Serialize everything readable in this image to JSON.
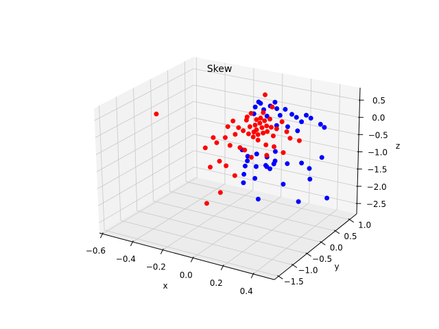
{
  "chart_data": {
    "type": "scatter",
    "projection": "3d",
    "title": "Skew",
    "xlabel": "x",
    "ylabel": "y",
    "zlabel": "z",
    "xlim": [
      -0.62,
      0.54
    ],
    "ylim": [
      -1.65,
      1.25
    ],
    "zlim": [
      -2.8,
      0.86
    ],
    "grid": true,
    "xticks": [
      -0.6,
      -0.4,
      -0.2,
      0.0,
      0.2,
      0.4
    ],
    "xtick_labels": [
      "−0.6",
      "−0.4",
      "−0.2",
      "0.0",
      "0.2",
      "0.4"
    ],
    "yticks": [
      -1.5,
      -1.0,
      -0.5,
      0.0,
      0.5,
      1.0
    ],
    "ytick_labels": [
      "−1.5",
      "−1.0",
      "−0.5",
      "0.0",
      "0.5",
      "1.0"
    ],
    "zticks": [
      -2.5,
      -2.0,
      -1.5,
      -1.0,
      -0.5,
      0.0,
      0.5
    ],
    "ztick_labels": [
      "−2.5",
      "−2.0",
      "−1.5",
      "−1.0",
      "−0.5",
      "0.0",
      "0.5"
    ],
    "series": [
      {
        "color": "#0000ff",
        "points": [
          [
            -0.095,
            1,
            0.04
          ],
          [
            -0.132,
            1,
            -0.1
          ],
          [
            -0.073,
            1,
            -0.13
          ],
          [
            -0.027,
            1,
            0.02
          ],
          [
            0.018,
            1,
            -0.02
          ],
          [
            -0.141,
            1,
            -0.31
          ],
          [
            0.005,
            1,
            0.16
          ],
          [
            -0.05,
            1,
            -0.3
          ],
          [
            0.077,
            1,
            0.01
          ],
          [
            0.123,
            1,
            -0.1
          ],
          [
            0.155,
            1,
            -0.16
          ],
          [
            0.223,
            1,
            -0.04
          ],
          [
            0.191,
            1,
            -0.26
          ],
          [
            0.255,
            1,
            -0.1
          ],
          [
            0.323,
            1,
            -0.22
          ],
          [
            0.35,
            1,
            -0.29
          ],
          [
            -0.109,
            1,
            0.07
          ],
          [
            0.041,
            1,
            -0.2
          ],
          [
            0.095,
            1,
            -0.49
          ],
          [
            0.164,
            1,
            -0.55
          ],
          [
            0.018,
            1,
            -0.52
          ],
          [
            0.209,
            -1,
            0.17
          ],
          [
            0.245,
            -1,
            0.02
          ],
          [
            0.305,
            -1,
            0.15
          ],
          [
            0.373,
            -1,
            0.13
          ],
          [
            0.227,
            -1,
            -0.28
          ],
          [
            0.3,
            -1,
            -0.22
          ],
          [
            0.364,
            -1,
            -0.12
          ],
          [
            0.418,
            -1,
            -0.02
          ],
          [
            0.218,
            -1,
            -0.53
          ],
          [
            0.291,
            -1,
            -0.57
          ],
          [
            0.214,
            -1,
            -0.78
          ],
          [
            0.377,
            1,
            -2.33
          ],
          [
            0.177,
            1,
            -2.62
          ],
          [
            0.336,
            1,
            -1.18
          ],
          [
            0.25,
            1,
            -1.58
          ],
          [
            0.255,
            1,
            -1.89
          ],
          [
            0.195,
            1,
            -1.47
          ],
          [
            0.068,
            1,
            -2.21
          ],
          [
            0.009,
            1,
            -1.58
          ],
          [
            0.105,
            0,
            -1.99
          ],
          [
            0.223,
            0,
            -0.48
          ],
          [
            0.095,
            1,
            -1.58
          ],
          [
            0.186,
            0,
            -1.02
          ],
          [
            0.032,
            0,
            -0.94
          ],
          [
            0.164,
            0,
            -0.98
          ]
        ]
      },
      {
        "color": "#ff0000",
        "points": [
          [
            -0.586,
            0,
            -0.155
          ],
          [
            -0.25,
            0,
            -2.48
          ],
          [
            -0.155,
            0,
            -2.06
          ],
          [
            -0.055,
            0,
            -1.46
          ],
          [
            -0.223,
            0,
            -1.38
          ],
          [
            -0.159,
            0,
            -1.14
          ],
          [
            -0.114,
            0,
            -1.23
          ],
          [
            -0.255,
            0,
            -0.84
          ],
          [
            -0.177,
            0,
            -0.61
          ],
          [
            -0.2,
            0,
            -0.48
          ],
          [
            -0.118,
            0,
            -0.4
          ],
          [
            -0.086,
            0,
            -0.6
          ],
          [
            -0.018,
            0,
            -0.6
          ],
          [
            0.059,
            0,
            -0.81
          ],
          [
            0.164,
            0,
            -0.65
          ],
          [
            0.277,
            0,
            -0.46
          ],
          [
            0.386,
            0,
            -0.01
          ],
          [
            -0.064,
            1,
            0.32
          ],
          [
            0.05,
            0,
            0.08
          ],
          [
            0.095,
            0,
            0.03
          ],
          [
            0.14,
            0,
            -0.02
          ],
          [
            0.073,
            0,
            -0.2
          ],
          [
            0.118,
            0,
            0.25
          ],
          [
            0.164,
            0,
            0.21
          ],
          [
            0.027,
            0,
            0.25
          ],
          [
            0.186,
            0,
            0.43
          ],
          [
            0.005,
            0,
            -0.08
          ],
          [
            0.209,
            0,
            -0.04
          ],
          [
            0.105,
            0,
            -0.26
          ],
          [
            0.232,
            0,
            0.19
          ],
          [
            0.059,
            0,
            0.48
          ],
          [
            0.141,
            0,
            0.58
          ],
          [
            -0.027,
            0,
            -0.02
          ],
          [
            -0.05,
            0,
            -0.24
          ],
          [
            0.268,
            0,
            0.43
          ],
          [
            0.3,
            0,
            0.17
          ],
          [
            0.323,
            0,
            0.0
          ],
          [
            -0.014,
            1,
            0.0
          ],
          [
            0.032,
            0,
            0.35
          ],
          [
            0.214,
            0,
            -0.35
          ],
          [
            0.159,
            0,
            -0.35
          ],
          [
            0.014,
            0,
            -0.64
          ],
          [
            -0.1,
            0,
            -0.06
          ],
          [
            -0.064,
            0,
            0.14
          ],
          [
            0.086,
            0,
            0.16
          ],
          [
            0.132,
            0,
            0.13
          ],
          [
            0.105,
            0,
            -0.1
          ],
          [
            0.15,
            0,
            0.35
          ],
          [
            0.077,
            0,
            -0.05
          ],
          [
            0.168,
            0,
            0.05
          ],
          [
            0.123,
            0,
            0.4
          ],
          [
            0.041,
            0,
            -0.14
          ],
          [
            0.195,
            0,
            0.2
          ],
          [
            0.095,
            0,
            0.33
          ]
        ]
      }
    ]
  }
}
